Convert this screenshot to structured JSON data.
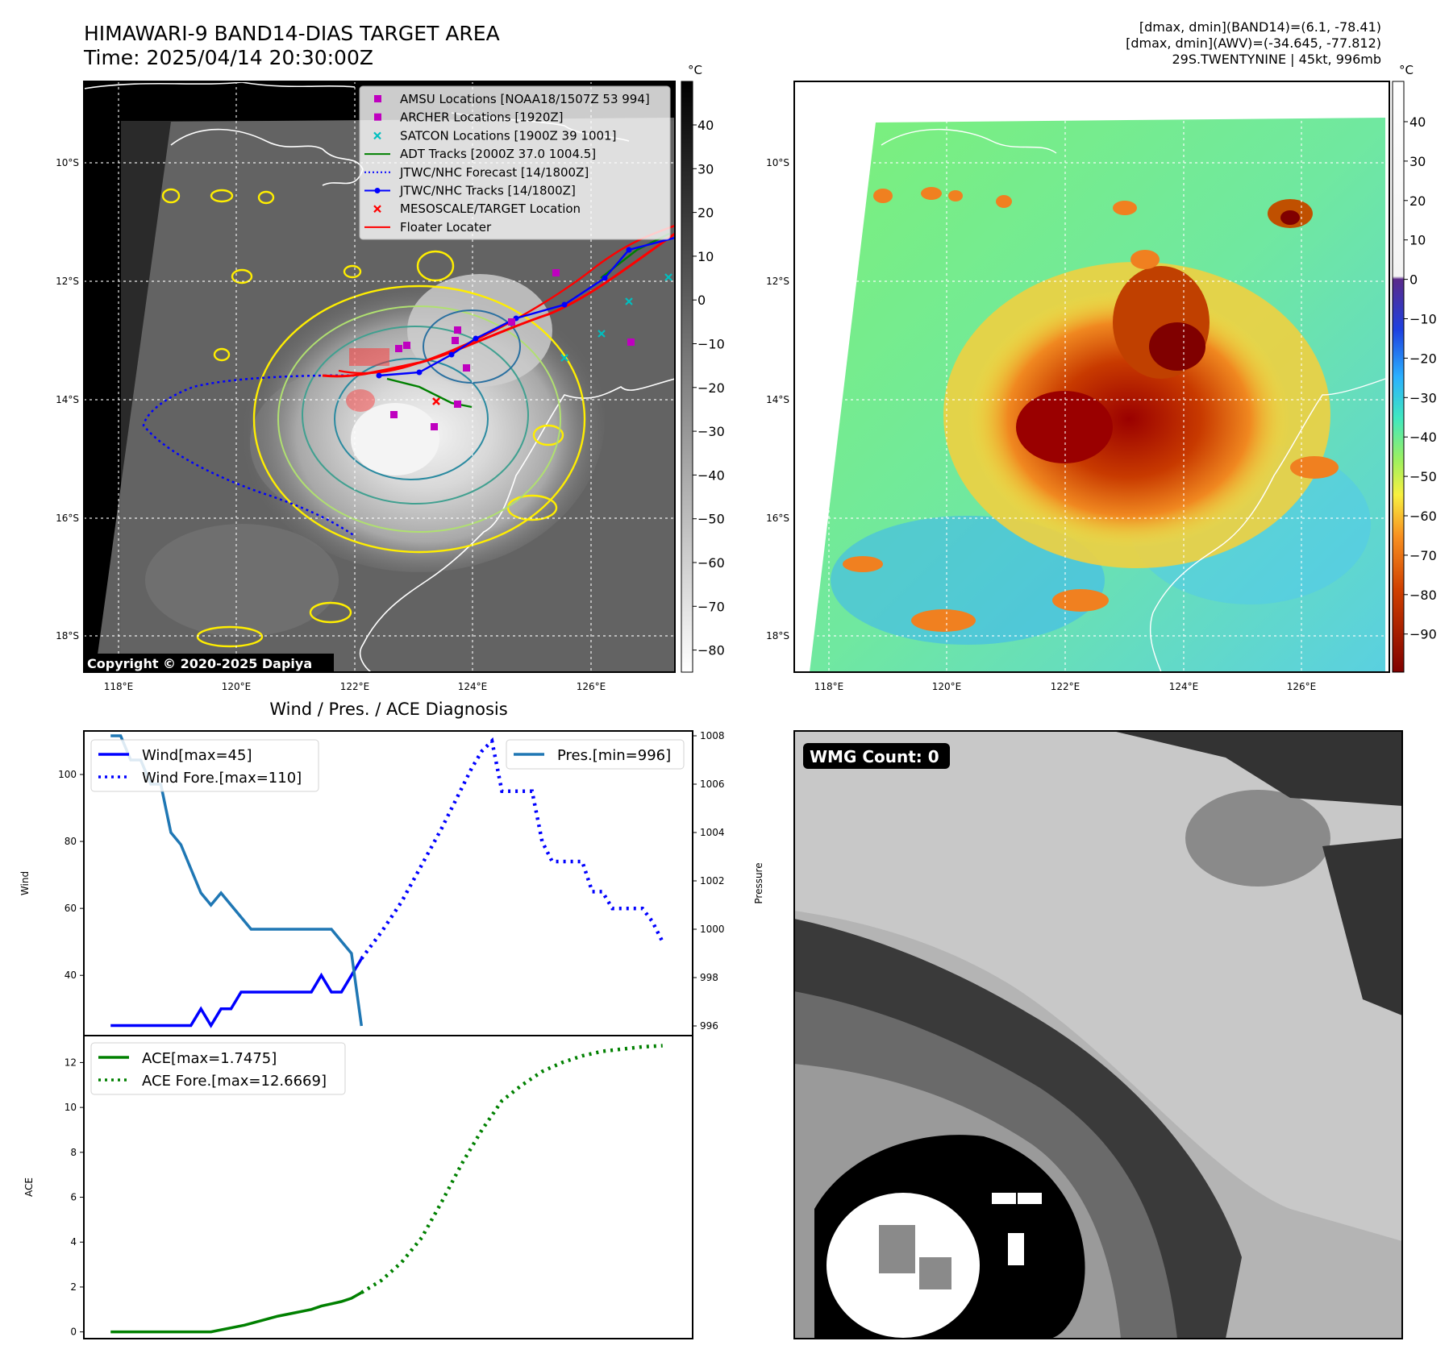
{
  "header": {
    "title": "HIMAWARI-9 BAND14-DIAS TARGET AREA",
    "time": "Time: 2025/04/14 20:30:00Z",
    "info_line1": "[dmax, dmin](BAND14)=(6.1, -78.41)",
    "info_line2": "[dmax, dmin](AWV)=(-34.645, -77.812)",
    "info_line3": "29S.TWENTYNINE | 45kt, 996mb"
  },
  "colors": {
    "wind": "#0000ff",
    "pressure": "#1f77b4",
    "ace": "#008000",
    "floater": "#ff0000",
    "adt": "#008000",
    "satcon": "#00bfbf",
    "amsu": "#bf00bf",
    "contour_yellow": "#ffee00"
  },
  "map_axes": {
    "lon_labels": [
      "118°E",
      "120°E",
      "122°E",
      "124°E",
      "126°E"
    ],
    "lat_labels": [
      "10°S",
      "12°S",
      "14°S",
      "16°S",
      "18°S"
    ],
    "copyright": "Copyright © 2020-2025 Dapiya"
  },
  "legend_map": [
    {
      "label": "AMSU Locations [NOAA18/1507Z 53 994]",
      "marker": "square",
      "color": "#bf00bf"
    },
    {
      "label": "ARCHER Locations [1920Z]",
      "marker": "square",
      "color": "#bf00bf"
    },
    {
      "label": "SATCON Locations [1900Z 39 1001]",
      "marker": "x",
      "color": "#00bfbf"
    },
    {
      "label": "ADT Tracks [2000Z 37.0 1004.5]",
      "marker": "line",
      "color": "#008000"
    },
    {
      "label": "JTWC/NHC Forecast [14/1800Z]",
      "marker": "dotted",
      "color": "#0000ff"
    },
    {
      "label": "JTWC/NHC Tracks [14/1800Z]",
      "marker": "line-dot",
      "color": "#0000ff"
    },
    {
      "label": "MESOSCALE/TARGET Location",
      "marker": "x",
      "color": "#ff0000"
    },
    {
      "label": "Floater Locater",
      "marker": "line",
      "color": "#ff0000"
    }
  ],
  "colorbar_gray": {
    "unit": "°C",
    "ticks": [
      "40",
      "30",
      "20",
      "10",
      "0",
      "−10",
      "−20",
      "−30",
      "−40",
      "−50",
      "−60",
      "−70",
      "−80"
    ]
  },
  "colorbar_color": {
    "unit": "°C",
    "ticks": [
      "40",
      "30",
      "20",
      "10",
      "0",
      "−10",
      "−20",
      "−30",
      "−40",
      "−50",
      "−60",
      "−70",
      "−80",
      "−90"
    ]
  },
  "chart_data": [
    {
      "type": "line",
      "title": "Wind / Pres. / ACE Diagnosis",
      "ylabel": "Wind",
      "y2label": "Pressure",
      "ylim": [
        22,
        113
      ],
      "y2lim": [
        995.6,
        1008.2
      ],
      "yticks": [
        40,
        60,
        80,
        100
      ],
      "y2ticks": [
        996,
        998,
        1000,
        1002,
        1004,
        1006,
        1008
      ],
      "series": [
        {
          "name": "Wind[max=45]",
          "axis": "left",
          "style": "solid",
          "x": [
            0,
            6,
            12,
            15,
            18,
            21,
            24,
            27,
            30,
            33,
            36,
            39,
            42,
            45,
            48,
            51,
            54,
            57,
            60,
            63,
            66,
            69,
            72,
            75
          ],
          "values": [
            25,
            25,
            25,
            25,
            25,
            25,
            25,
            30,
            25,
            30,
            30,
            35,
            35,
            35,
            35,
            35,
            35,
            35,
            35,
            40,
            35,
            35,
            40,
            45
          ]
        },
        {
          "name": "Wind Fore.[max=110]",
          "axis": "left",
          "style": "dotted",
          "x": [
            75,
            81,
            87,
            93,
            99,
            105,
            108,
            111,
            114,
            117,
            120,
            123,
            126,
            129,
            132,
            135,
            138,
            141,
            144,
            147,
            150,
            153,
            156,
            159,
            162,
            165
          ],
          "values": [
            45,
            53,
            62,
            73,
            84,
            96,
            102,
            107,
            110,
            95,
            95,
            95,
            95,
            80,
            74,
            74,
            74,
            74,
            65,
            65,
            60,
            60,
            60,
            60,
            56,
            50
          ]
        },
        {
          "name": "Pres.[min=996]",
          "axis": "right",
          "style": "solid",
          "x": [
            0,
            3,
            6,
            9,
            12,
            15,
            18,
            21,
            24,
            27,
            30,
            33,
            36,
            42,
            48,
            54,
            60,
            66,
            69,
            72,
            75
          ],
          "values": [
            1008,
            1008,
            1007,
            1007,
            1006,
            1006,
            1004,
            1003.5,
            1002.5,
            1001.5,
            1001,
            1001.5,
            1001,
            1000,
            1000,
            1000,
            1000,
            1000,
            999.5,
            999,
            996
          ]
        }
      ]
    },
    {
      "type": "line",
      "ylabel": "ACE",
      "ylim": [
        -0.3,
        13.2
      ],
      "yticks": [
        0,
        2,
        4,
        6,
        8,
        10,
        12
      ],
      "series": [
        {
          "name": "ACE[max=1.7475]",
          "style": "solid",
          "x": [
            0,
            30,
            40,
            45,
            50,
            55,
            60,
            63,
            66,
            69,
            72,
            75
          ],
          "values": [
            0,
            0,
            0.3,
            0.5,
            0.7,
            0.85,
            1.0,
            1.15,
            1.25,
            1.35,
            1.5,
            1.75
          ]
        },
        {
          "name": "ACE Fore.[max=12.6669]",
          "style": "dotted",
          "x": [
            75,
            81,
            87,
            93,
            99,
            105,
            111,
            117,
            123,
            129,
            135,
            141,
            147,
            153,
            159,
            165
          ],
          "values": [
            1.75,
            2.3,
            3.1,
            4.2,
            5.8,
            7.5,
            9.0,
            10.3,
            11.0,
            11.6,
            12.0,
            12.3,
            12.5,
            12.6,
            12.7,
            12.75
          ]
        }
      ]
    }
  ],
  "wmg_panel": {
    "label": "WMG Count: 0"
  }
}
